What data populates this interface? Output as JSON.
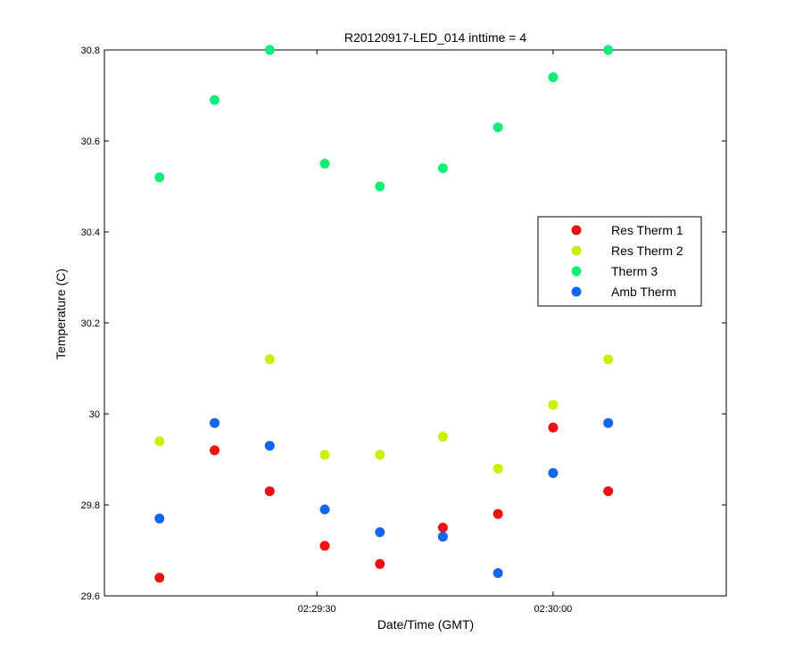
{
  "chart_data": {
    "type": "scatter",
    "title": "R20120917-LED_014 inttime = 4",
    "xlabel": "Date/Time (GMT)",
    "ylabel": "Temperature (C)",
    "x_unit": "time_hh:mm:ss",
    "xlim": [
      "02:29:03",
      "02:30:22"
    ],
    "ylim": [
      29.6,
      30.8
    ],
    "x_ticks": [
      {
        "value": "02:29:30",
        "label": "02:29:30"
      },
      {
        "value": "02:30:00",
        "label": "02:30:00"
      }
    ],
    "y_ticks": [
      {
        "value": 29.6,
        "label": "29.6"
      },
      {
        "value": 29.8,
        "label": "29.8"
      },
      {
        "value": 30.0,
        "label": "30"
      },
      {
        "value": 30.2,
        "label": "30.2"
      },
      {
        "value": 30.4,
        "label": "30.4"
      },
      {
        "value": 30.6,
        "label": "30.6"
      },
      {
        "value": 30.8,
        "label": "30.8"
      }
    ],
    "grid": false,
    "legend_position": "right",
    "x": [
      "02:29:10",
      "02:29:17",
      "02:29:24",
      "02:29:31",
      "02:29:38",
      "02:29:46",
      "02:29:53",
      "02:30:00",
      "02:30:07"
    ],
    "series": [
      {
        "name": "Res Therm 1",
        "color": "#ee1111",
        "values": [
          29.64,
          29.92,
          29.83,
          29.71,
          29.67,
          29.75,
          29.78,
          29.97,
          29.83
        ]
      },
      {
        "name": "Res Therm 2",
        "color": "#ccee00",
        "values": [
          29.94,
          29.98,
          30.12,
          29.91,
          29.91,
          29.95,
          29.88,
          30.02,
          30.12
        ]
      },
      {
        "name": "Therm 3",
        "color": "#11ee77",
        "values": [
          30.52,
          30.69,
          30.8,
          30.55,
          30.5,
          30.54,
          30.63,
          30.74,
          30.8
        ]
      },
      {
        "name": "Amb Therm",
        "color": "#1166ee",
        "values": [
          29.77,
          29.98,
          29.93,
          29.79,
          29.74,
          29.73,
          29.65,
          29.87,
          29.98
        ]
      }
    ]
  }
}
